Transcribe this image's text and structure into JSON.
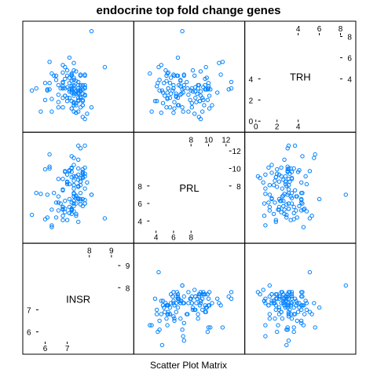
{
  "chart_data": {
    "type": "scatter",
    "title": "endocrine top fold change genes",
    "xlabel": "Scatter Plot Matrix",
    "point_color": "#0080ff",
    "variables": [
      {
        "name": "INSR",
        "range": [
          5.2,
          9.8
        ],
        "ticks_lower": [
          "6",
          "7"
        ],
        "ticks_upper": [
          "8",
          "9"
        ],
        "values": [
          6.0,
          6.3,
          7.5,
          7.6,
          7.4,
          7.0,
          6.6,
          7.3,
          8.1,
          6.8,
          7.6,
          7.7,
          7.3,
          7.2,
          7.7,
          7.8,
          7.6,
          7.3,
          7.0,
          7.5,
          7.3,
          7.1,
          7.4,
          7.7,
          7.5,
          7.3,
          6.5,
          6.2,
          7.4,
          7.6,
          8.7,
          7.2,
          7.3,
          6.1,
          6.6,
          7.2,
          7.3,
          7.5,
          7.2,
          7.3,
          7.7,
          6.9,
          7.3,
          7.7,
          7.3,
          7.2,
          6.1,
          7.1,
          6.3,
          6.2,
          6.2,
          7.7,
          7.5,
          5.6,
          7.8,
          7.3,
          7.5,
          7.8,
          7.6,
          7.3,
          7.4,
          6.8,
          6.7,
          7.3,
          7.3,
          7.6,
          7.3,
          7.8,
          7.9,
          7.8,
          7.0,
          7.6,
          7.7,
          7.5,
          7.1,
          7.4,
          7.2,
          7.4,
          7.1,
          6.8,
          7.2,
          7.5,
          6.8,
          7.1,
          7.4,
          7.8,
          7.2,
          6.6,
          6.6,
          7.1,
          7.2,
          7.8,
          6.9,
          8.1,
          6.5,
          6.8,
          5.4,
          6.8,
          6.8,
          6.3,
          7.2,
          7.2,
          6.9,
          7.5,
          7.2,
          7.5,
          7.0,
          5.8,
          6.0,
          6.9,
          6.8,
          7.8,
          7.4,
          6.8,
          7.6,
          7.7,
          6.4,
          6.9,
          7.6,
          7.0
        ]
      },
      {
        "name": "PRL",
        "range": [
          2.0,
          13.6
        ],
        "ticks_lower": [
          "4",
          "6",
          "8"
        ],
        "ticks_upper": [
          "8",
          "10",
          "12"
        ],
        "values": [
          9.9,
          3.3,
          3.9,
          6.5,
          6.0,
          9.3,
          6.8,
          8.1,
          7.0,
          5.3,
          12.3,
          9.4,
          9.1,
          5.2,
          6.5,
          9.4,
          6.3,
          7.1,
          8.2,
          8.0,
          10.4,
          9.8,
          4.8,
          8.9,
          8.7,
          11.2,
          4.4,
          10.0,
          4.6,
          8.9,
          4.3,
          9.6,
          6.8,
          7.0,
          8.8,
          6.1,
          5.1,
          9.3,
          10.1,
          8.6,
          9.0,
          5.4,
          5.7,
          9.6,
          8.1,
          10.0,
          4.4,
          6.5,
          3.5,
          10.2,
          11.6,
          9.5,
          10.0,
          7.2,
          10.1,
          6.8,
          11.0,
          9.1,
          8.5,
          7.2,
          9.1,
          7.6,
          6.0,
          7.7,
          6.3,
          8.5,
          6.0,
          7.7,
          8.4,
          12.6,
          4.1,
          8.1,
          5.7,
          7.9,
          4.9,
          9.1,
          4.8,
          6.6,
          5.6,
          4.1,
          5.2,
          6.6,
          8.8,
          9.7,
          6.9,
          6.4,
          5.3,
          5.2,
          6.1,
          8.2,
          5.3,
          6.0,
          9.7,
          7.0,
          6.1,
          5.6,
          4.7,
          5.6,
          4.6,
          5.3,
          11.4,
          9.0,
          6.3,
          6.5,
          5.4,
          12.6,
          8.5,
          7.1,
          4.2,
          9.6,
          7.5,
          6.0,
          6.8,
          5.4,
          5.9,
          9.9,
          7.2,
          5.0,
          7.2,
          8.4
        ]
      },
      {
        "name": "TRH",
        "range": [
          -0.6,
          9.0
        ],
        "ticks_lower": [
          "0",
          "2",
          "4"
        ],
        "ticks_upper": [
          "4",
          "6",
          "8"
        ],
        "values": [
          2.0,
          4.5,
          1.9,
          4.3,
          0.8,
          2.2,
          2.5,
          3.1,
          1.3,
          2.2,
          3.0,
          2.0,
          2.4,
          4.3,
          1.5,
          3.2,
          2.3,
          2.7,
          4.8,
          2.9,
          1.5,
          4.1,
          1.7,
          0.4,
          2.6,
          5.5,
          3.9,
          3.6,
          0.8,
          3.4,
          5.1,
          3.0,
          3.3,
          3.0,
          3.4,
          1.2,
          4.8,
          0.9,
          1.2,
          1.8,
          1.9,
          3.1,
          4.1,
          3.4,
          1.7,
          3.3,
          2.9,
          6.0,
          0.9,
          3.0,
          5.6,
          1.5,
          3.1,
          3.1,
          2.4,
          3.9,
          2.7,
          0.2,
          2.8,
          3.4,
          4.7,
          3.1,
          3.1,
          0.9,
          2.6,
          2.2,
          3.1,
          2.5,
          0.7,
          3.1,
          1.9,
          1.3,
          2.6,
          2.0,
          3.6,
          2.8,
          2.7,
          1.5,
          2.2,
          3.3,
          3.8,
          3.4,
          3.1,
          3.0,
          2.6,
          4.3,
          2.7,
          1.3,
          1.8,
          2.8,
          4.5,
          3.4,
          5.1,
          8.5,
          4.3,
          3.6,
          2.9,
          1.3,
          5.3,
          2.1,
          4.4,
          1.9,
          2.4,
          2.2,
          3.1,
          3.7,
          3.2,
          0.9,
          3.6,
          4.0,
          3.7,
          4.4,
          3.8,
          4.6,
          2.9,
          3.0,
          4.3,
          2.4,
          4.4,
          4.3
        ]
      }
    ]
  }
}
